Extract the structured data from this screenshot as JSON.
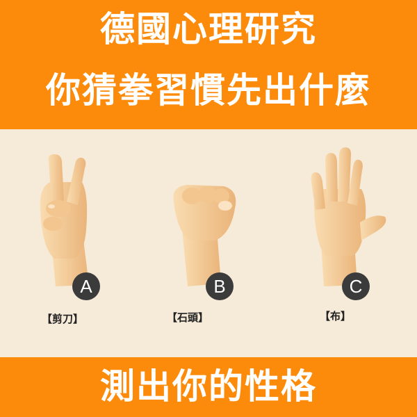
{
  "header": {
    "line1": "德國心理研究",
    "line2": "你猜拳習慣先出什麼"
  },
  "options": [
    {
      "letter": "A",
      "label": "【剪刀】",
      "icon": "scissors-hand-icon"
    },
    {
      "letter": "B",
      "label": "【石頭】",
      "icon": "rock-fist-icon"
    },
    {
      "letter": "C",
      "label": "【布】",
      "icon": "paper-open-hand-icon"
    }
  ],
  "footer": {
    "line": "測出你的性格"
  },
  "colors": {
    "band": "#fd8b0b",
    "background": "#f6ead8",
    "badge": "#3b3b3b",
    "skin": "#f7d3a0"
  }
}
